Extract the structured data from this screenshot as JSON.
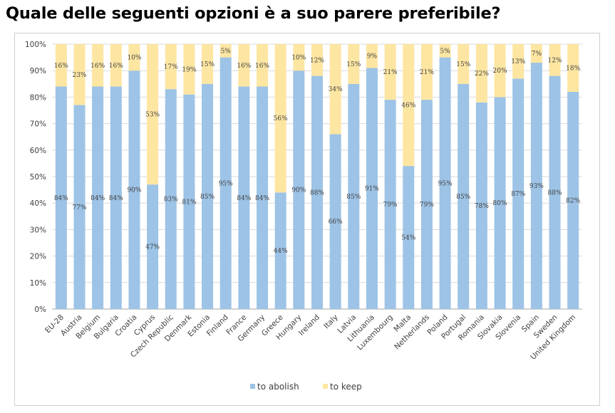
{
  "title": "Quale delle seguenti opzioni è a suo parere preferibile?",
  "chart_data": {
    "type": "bar",
    "stacked": true,
    "categories": [
      "EU-28",
      "Austria",
      "Belgium",
      "Bulgaria",
      "Croatia",
      "Cyprus",
      "Czech Republic",
      "Denmark",
      "Estonia",
      "Finland",
      "France",
      "Germany",
      "Greece",
      "Hungary",
      "Ireland",
      "Italy",
      "Latvia",
      "Lithuania",
      "Luxembourg",
      "Malta",
      "Netherlands",
      "Poland",
      "Portugal",
      "Romania",
      "Slovakia",
      "Slovenia",
      "Spain",
      "Sweden",
      "United Kingdom"
    ],
    "series": [
      {
        "name": "to abolish",
        "values": [
          84,
          77,
          84,
          84,
          90,
          47,
          83,
          81,
          85,
          95,
          84,
          84,
          44,
          90,
          88,
          66,
          85,
          91,
          79,
          54,
          79,
          95,
          85,
          78,
          80,
          87,
          93,
          88,
          82
        ]
      },
      {
        "name": "to keep",
        "values": [
          16,
          23,
          16,
          16,
          10,
          53,
          17,
          19,
          15,
          5,
          16,
          16,
          56,
          10,
          12,
          34,
          15,
          9,
          21,
          46,
          21,
          5,
          15,
          22,
          20,
          13,
          7,
          12,
          18
        ]
      }
    ],
    "ylim": [
      0,
      100
    ],
    "yticks": [
      "0%",
      "10%",
      "20%",
      "30%",
      "40%",
      "50%",
      "60%",
      "70%",
      "80%",
      "90%",
      "100%"
    ],
    "xlabel": "",
    "ylabel": "",
    "grid": true,
    "legend_position": "bottom",
    "colors": {
      "to abolish": "#9dc3e6",
      "to keep": "#fde6a2"
    }
  }
}
